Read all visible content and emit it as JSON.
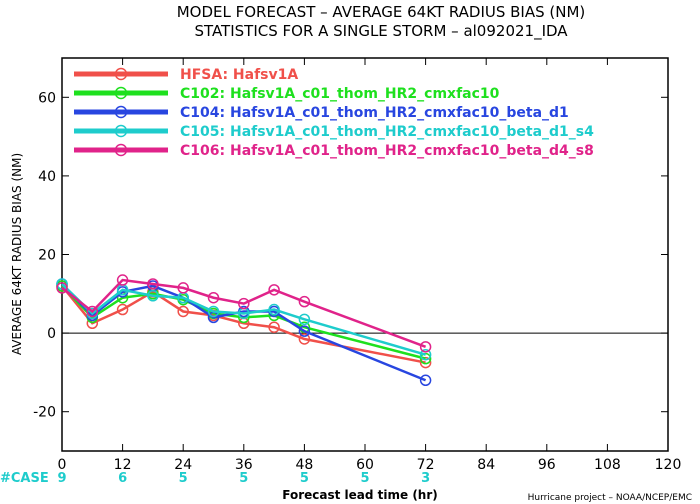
{
  "chart_data": {
    "type": "line",
    "title": "MODEL FORECAST – AVERAGE 64KT RADIUS BIAS (NM)",
    "subtitle": "STATISTICS FOR A SINGLE STORM – al092021_IDA",
    "xlabel": "Forecast lead time (hr)",
    "ylabel": "AVERAGE 64KT RADIUS BIAS (NM)",
    "xlim": [
      0,
      120
    ],
    "ylim": [
      -30,
      70
    ],
    "xticks": [
      0,
      12,
      24,
      36,
      48,
      60,
      72,
      84,
      96,
      108,
      120
    ],
    "yticks": [
      -20,
      0,
      20,
      40,
      60
    ],
    "grid": false,
    "legend_position": "top-left",
    "case_label": "#CASE",
    "cases": [
      {
        "x": 0,
        "n": "9"
      },
      {
        "x": 12,
        "n": "6"
      },
      {
        "x": 24,
        "n": "5"
      },
      {
        "x": 36,
        "n": "5"
      },
      {
        "x": 48,
        "n": "5"
      },
      {
        "x": 60,
        "n": "5"
      },
      {
        "x": 72,
        "n": "3"
      }
    ],
    "credit": "Hurricane project – NOAA/NCEP/EMC",
    "x": [
      0,
      6,
      12,
      18,
      24,
      30,
      36,
      42,
      48,
      72
    ],
    "series": [
      {
        "name": "HFSA: Hafsv1A",
        "color": "#f0504a",
        "values": [
          12,
          2.5,
          6,
          10.5,
          5.5,
          4.5,
          2.5,
          1.5,
          -1.5,
          -7.5
        ]
      },
      {
        "name": "C102: Hafsv1A_c01_thom_HR2_cmxfac10",
        "color": "#1ee01e",
        "values": [
          12,
          4,
          9,
          10,
          8.5,
          5,
          4,
          4.5,
          1.5,
          -6.5
        ]
      },
      {
        "name": "C104: Hafsv1A_c01_thom_HR2_cmxfac10_beta_d1",
        "color": "#2846e0",
        "values": [
          12.5,
          4.5,
          10.5,
          12,
          9,
          4,
          5.5,
          5.5,
          0.5,
          -12
        ]
      },
      {
        "name": "C105: Hafsv1A_c01_thom_HR2_cmxfac10_beta_d1_s4",
        "color": "#1ecccc",
        "values": [
          12.5,
          5,
          11,
          9.5,
          9,
          5.5,
          5,
          6,
          3.5,
          -5.5
        ]
      },
      {
        "name": "C106: Hafsv1A_c01_thom_HR2_cmxfac10_beta_d4_s8",
        "color": "#e0238a",
        "values": [
          11.5,
          5.5,
          13.5,
          12.5,
          11.5,
          9,
          7.5,
          11,
          8,
          -3.5
        ]
      }
    ]
  }
}
